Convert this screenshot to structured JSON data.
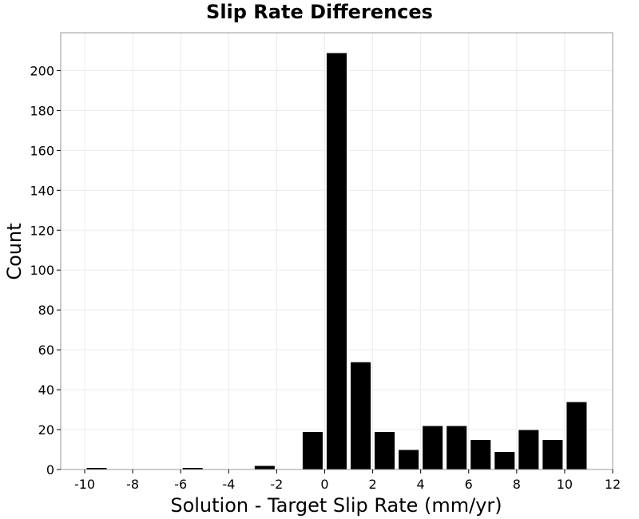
{
  "chart_data": {
    "type": "bar",
    "title": "Slip Rate Differences",
    "xlabel": "Solution - Target Slip Rate (mm/yr)",
    "ylabel": "Count",
    "xlim": [
      -11,
      12
    ],
    "ylim": [
      0,
      219
    ],
    "xticks": [
      -10,
      -8,
      -6,
      -4,
      -2,
      0,
      2,
      4,
      6,
      8,
      10,
      12
    ],
    "yticks": [
      0,
      20,
      40,
      60,
      80,
      100,
      120,
      140,
      160,
      180,
      200
    ],
    "bin_width": 1,
    "bins": [
      {
        "x": -10,
        "count": 1
      },
      {
        "x": -6,
        "count": 1
      },
      {
        "x": -3,
        "count": 2
      },
      {
        "x": -1,
        "count": 19
      },
      {
        "x": 0,
        "count": 209
      },
      {
        "x": 1,
        "count": 54
      },
      {
        "x": 2,
        "count": 19
      },
      {
        "x": 3,
        "count": 10
      },
      {
        "x": 4,
        "count": 22
      },
      {
        "x": 5,
        "count": 22
      },
      {
        "x": 6,
        "count": 15
      },
      {
        "x": 7,
        "count": 9
      },
      {
        "x": 8,
        "count": 20
      },
      {
        "x": 9,
        "count": 15
      },
      {
        "x": 10,
        "count": 34
      }
    ],
    "grid": true,
    "bar_color": "#000000",
    "bar_edge_color": "#ffffff"
  }
}
